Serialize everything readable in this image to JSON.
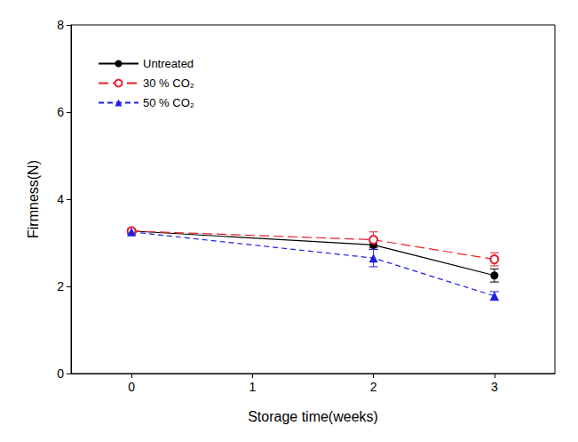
{
  "chart_data": {
    "type": "line",
    "x_label": "Storage time(weeks)",
    "y_label": "Firmness(N)",
    "xlim": [
      -0.5,
      3.5
    ],
    "xticks": [
      0,
      1,
      2,
      3
    ],
    "ylim": [
      0,
      8
    ],
    "yticks": [
      0,
      2,
      4,
      6,
      8
    ],
    "grid": false,
    "legend": "upper left",
    "series": [
      {
        "name": "Untreated",
        "color": "#000000",
        "marker": "circle",
        "line_style": "solid",
        "x": [
          0,
          2,
          3
        ],
        "values": [
          3.27,
          2.95,
          2.25
        ],
        "errors": [
          0.05,
          0.1,
          0.15
        ]
      },
      {
        "name": "30 % CO₂",
        "color": "#e8202a",
        "marker": "open_circle",
        "line_style": "long_dash",
        "x": [
          0,
          2,
          3
        ],
        "values": [
          3.27,
          3.07,
          2.62
        ],
        "errors": [
          0.05,
          0.18,
          0.15
        ]
      },
      {
        "name": "50 % CO₂",
        "color": "#1f1fe0",
        "marker": "triangle",
        "line_style": "dash",
        "x": [
          0,
          2,
          3
        ],
        "values": [
          3.25,
          2.65,
          1.78
        ],
        "errors": [
          0.05,
          0.2,
          0.1
        ]
      }
    ]
  }
}
